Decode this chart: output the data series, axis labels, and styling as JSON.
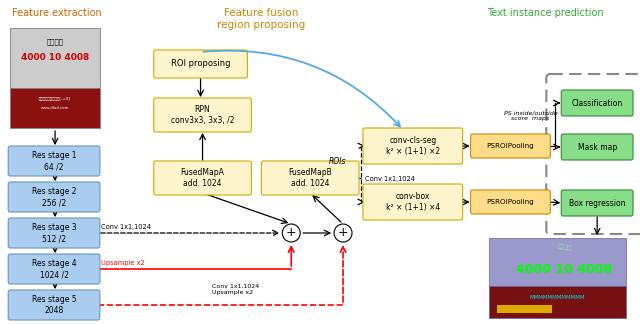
{
  "title_left": "Feature extraction",
  "title_mid_1": "Feature fusion",
  "title_mid_2": "region proposing",
  "title_right": "Text instance prediction",
  "title_left_color": "#cc6600",
  "title_mid_color": "#cc8800",
  "title_right_color": "#33aa33",
  "res_fc": "#aaccee",
  "res_ec": "#6699bb",
  "yellow_fc": "#fff5cc",
  "yellow_ec": "#ccaa00",
  "psroi_fc": "#ffdd88",
  "psroi_ec": "#cc8800",
  "out_fc": "#88dd88",
  "out_ec": "#338833"
}
